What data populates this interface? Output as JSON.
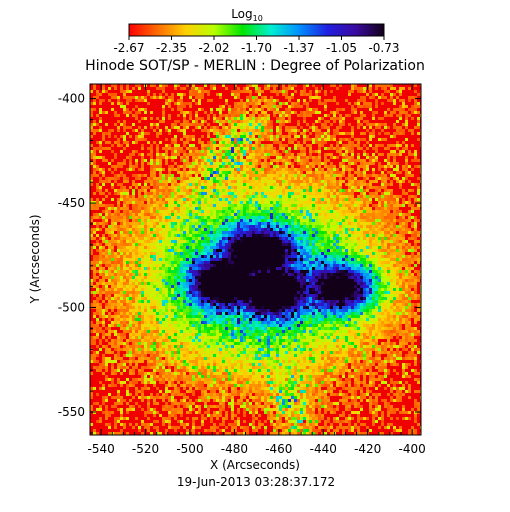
{
  "colorbar": {
    "label": "Log",
    "label_sub": "10",
    "tick_labels": [
      "-2.67",
      "-2.35",
      "-2.02",
      "-1.70",
      "-1.37",
      "-1.05",
      "-0.73"
    ],
    "range": [
      -2.67,
      -0.73
    ],
    "colors": [
      "#ff0000",
      "#ff6a00",
      "#ffd000",
      "#b8ff00",
      "#00e600",
      "#00f0d0",
      "#0090ff",
      "#2020e0",
      "#3a0aa0",
      "#120018"
    ]
  },
  "chart_data": {
    "type": "heatmap",
    "title": "Hinode SOT/SP - MERLIN : Degree of Polarization",
    "xlabel": "X (Arcseconds)",
    "ylabel": "Y (Arcseconds)",
    "xlim": [
      -545,
      -396
    ],
    "ylim": [
      -561,
      -393
    ],
    "x_ticks": [
      -540,
      -520,
      -500,
      -480,
      -460,
      -440,
      -420,
      -400
    ],
    "y_ticks": [
      -400,
      -450,
      -500,
      -550
    ],
    "x_tick_labels": [
      "-540",
      "-520",
      "-500",
      "-480",
      "-460",
      "-440",
      "-420",
      "-400"
    ],
    "y_tick_labels": [
      "-400",
      "-450",
      "-500",
      "-550"
    ],
    "value_scale": "log10",
    "grid": false,
    "umbrae": [
      {
        "x": -485,
        "y": -487,
        "value": -0.78
      },
      {
        "x": -470,
        "y": -473,
        "value": -0.8
      },
      {
        "x": -463,
        "y": -491,
        "value": -0.8
      },
      {
        "x": -432,
        "y": -490,
        "value": -0.85
      }
    ]
  },
  "footer": {
    "date": "19-Jun-2013 03:28:37.172"
  }
}
